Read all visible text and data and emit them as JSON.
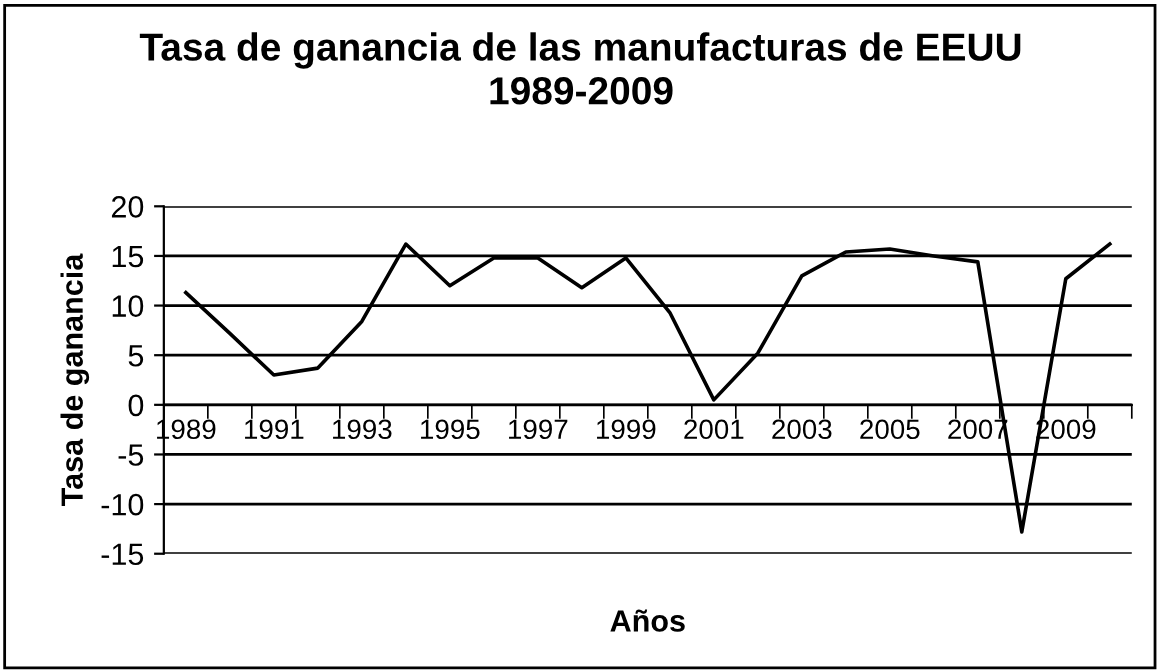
{
  "chart_data": {
    "type": "line",
    "title": "Tasa de ganancia de las manufacturas de EEUU",
    "subtitle": "1989-2009",
    "xlabel": "Años",
    "ylabel": "Tasa de ganancia",
    "categories": [
      "1989",
      null,
      "1991",
      null,
      "1993",
      null,
      "1995",
      null,
      "1997",
      null,
      "1999",
      null,
      "2001",
      null,
      "2003",
      null,
      "2005",
      null,
      "2007",
      null,
      "2009",
      null
    ],
    "series": [
      {
        "color": "#000000",
        "values": [
          11.3,
          7.2,
          3.0,
          3.7,
          8.4,
          16.2,
          12.0,
          14.8,
          14.8,
          11.8,
          14.8,
          9.3,
          0.5,
          5.2,
          13.0,
          15.4,
          15.7,
          15.0,
          14.4,
          -12.8,
          12.7,
          16.2
        ]
      }
    ],
    "ylim": [
      -15,
      20
    ],
    "yticks": [
      -15,
      -10,
      -5,
      0,
      5,
      10,
      15,
      20
    ],
    "grid": "y",
    "marker": "none",
    "line_style": "solid"
  }
}
